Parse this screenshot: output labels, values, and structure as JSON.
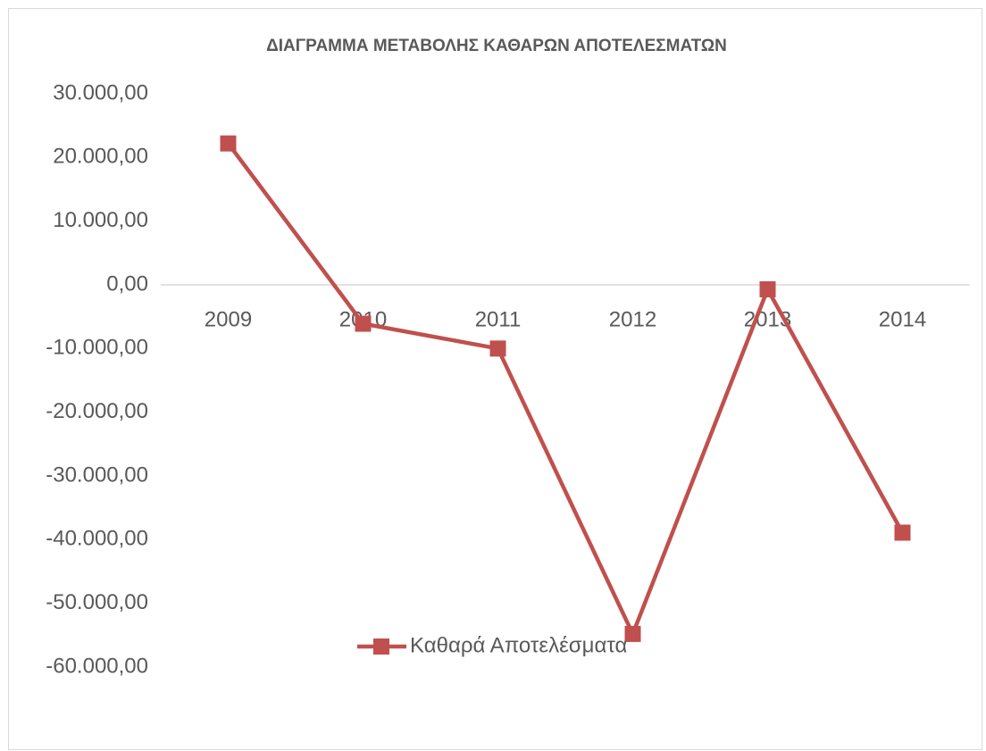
{
  "chart_data": {
    "type": "line",
    "title": "ΔΙΑΓΡΑΜΜΑ ΜΕΤΑΒΟΛΗΣ ΚΑΘΑΡΩΝ ΑΠΟΤΕΛΕΣΜΑΤΩΝ",
    "categories": [
      "2009",
      "2010",
      "2011",
      "2012",
      "2013",
      "2014"
    ],
    "series": [
      {
        "name": "Καθαρά Αποτελέσματα",
        "color": "#c0504d",
        "values": [
          22200,
          -6100,
          -10000,
          -54800,
          -700,
          -38900
        ]
      }
    ],
    "ylim": [
      -60000,
      30000
    ],
    "yticks": [
      {
        "value": 30000,
        "label": "30.000,00"
      },
      {
        "value": 20000,
        "label": "20.000,00"
      },
      {
        "value": 10000,
        "label": "10.000,00"
      },
      {
        "value": 0,
        "label": "0,00"
      },
      {
        "value": -10000,
        "label": "-10.000,00"
      },
      {
        "value": -20000,
        "label": "-20.000,00"
      },
      {
        "value": -30000,
        "label": "-30.000,00"
      },
      {
        "value": -40000,
        "label": "-40.000,00"
      },
      {
        "value": -50000,
        "label": "-50.000,00"
      },
      {
        "value": -60000,
        "label": "-60.000,00"
      }
    ],
    "legend": "bottom"
  }
}
